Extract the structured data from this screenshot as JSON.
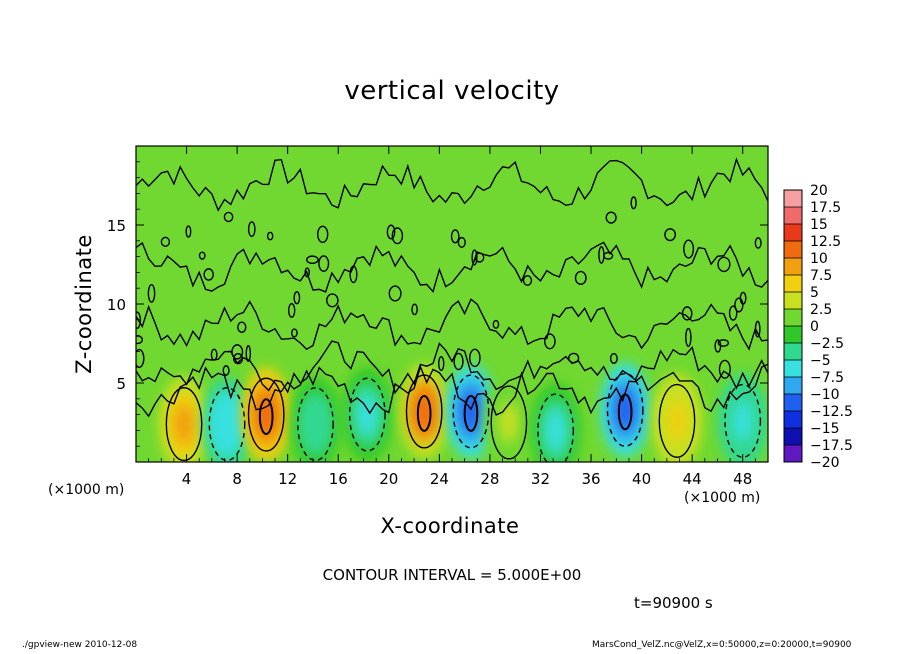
{
  "chart_data": {
    "type": "heatmap",
    "title": "vertical velocity",
    "xlabel": "X-coordinate",
    "ylabel": "Z-coordinate",
    "x_unit_left": "(×1000 m)",
    "x_unit_right": "(×1000 m)",
    "xlim": [
      0,
      50
    ],
    "ylim": [
      0,
      20
    ],
    "x_ticks": [
      "4",
      "8",
      "12",
      "16",
      "20",
      "24",
      "28",
      "32",
      "36",
      "40",
      "44",
      "48"
    ],
    "x_tick_values": [
      4,
      8,
      12,
      16,
      20,
      24,
      28,
      32,
      36,
      40,
      44,
      48
    ],
    "y_ticks": [
      "5",
      "10",
      "15"
    ],
    "y_tick_values": [
      5,
      10,
      15
    ],
    "colorbar": {
      "labels": [
        "20",
        "17.5",
        "15",
        "12.5",
        "10",
        "7.5",
        "5",
        "2.5",
        "0",
        "−2.5",
        "−5",
        "−7.5",
        "−10",
        "−12.5",
        "−15",
        "−17.5",
        "−20"
      ],
      "colors": [
        "#f4a0a0",
        "#f06a6a",
        "#e83a1a",
        "#f06a10",
        "#f0a010",
        "#f0d010",
        "#c8e020",
        "#70d830",
        "#30c828",
        "#30d890",
        "#38e0e0",
        "#30a8f0",
        "#2060f0",
        "#1030e0",
        "#1010b0",
        "#6018c0"
      ]
    },
    "cells": [
      {
        "x": 3.8,
        "z": 2.4,
        "value": 8
      },
      {
        "x": 7.2,
        "z": 2.4,
        "value": -7
      },
      {
        "x": 10.3,
        "z": 3.0,
        "value": 12
      },
      {
        "x": 14.2,
        "z": 2.4,
        "value": -4
      },
      {
        "x": 18.3,
        "z": 3.0,
        "value": -5
      },
      {
        "x": 22.8,
        "z": 3.2,
        "value": 11
      },
      {
        "x": 26.5,
        "z": 3.2,
        "value": -12
      },
      {
        "x": 29.5,
        "z": 2.5,
        "value": 3
      },
      {
        "x": 33.2,
        "z": 2.0,
        "value": -5
      },
      {
        "x": 38.7,
        "z": 3.3,
        "value": -12
      },
      {
        "x": 42.8,
        "z": 2.6,
        "value": 7
      },
      {
        "x": 48.0,
        "z": 2.6,
        "value": -6
      }
    ],
    "background_value": 1
  },
  "annotations": {
    "contour_interval": "CONTOUR INTERVAL = 5.000E+00",
    "time": "t=90900 s",
    "footer_left": "./gpview-new   2010-12-08",
    "footer_right": "MarsCond_VelZ.nc@VelZ,x=0:50000,z=0:20000,t=90900"
  }
}
